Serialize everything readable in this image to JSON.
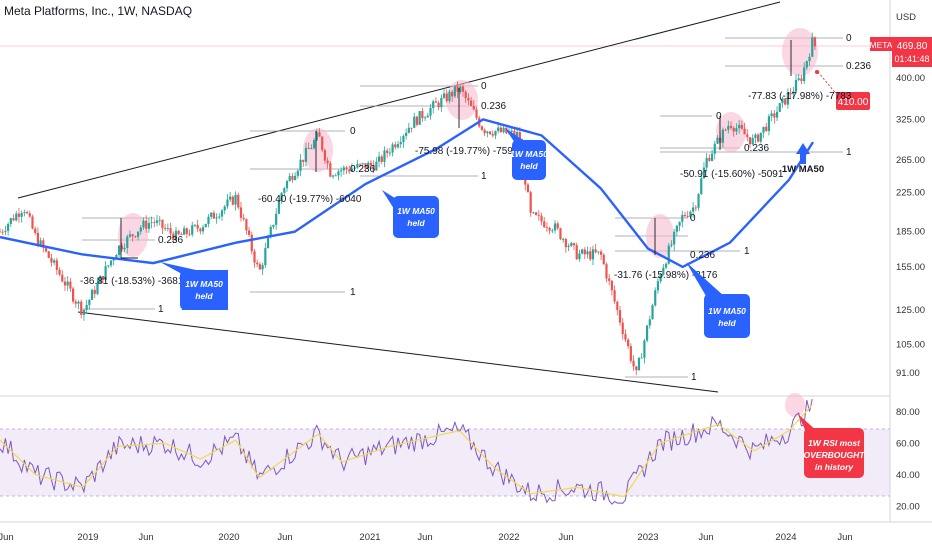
{
  "header": {
    "title": "Meta Platforms, Inc., 1W, NASDAQ"
  },
  "currency_label": "USD",
  "price_tag": {
    "symbol": "META",
    "price": "469.80",
    "countdown": "01:41:48",
    "color": "#f23645"
  },
  "target_tag": {
    "label": "410.00",
    "color": "#f23645"
  },
  "fib_labels": {
    "zero": "0",
    "mid": "0.236",
    "one": "1"
  },
  "pullbacks": {
    "p2019": "-36.81 (-18.53%) -3681",
    "p2020": "-60.40 (-19.77%) -6040",
    "p2021": "-75.98 (-19.77%) -7598",
    "p2023a": "-31.76 (-15.98%) -3176",
    "p2023b": "-50.91 (-15.60%) -5091",
    "p2024": "-77.83 (-17.98%) -7783"
  },
  "callouts": {
    "ma_held": [
      "1W MA50",
      "held"
    ],
    "ma_label": "1W MA50",
    "rsi": [
      "1W RSI most",
      "OVERBOUGHT",
      "in history"
    ]
  },
  "colors": {
    "up": "#26a69a",
    "down": "#ef5350",
    "ma50": "#2962ff",
    "rsi": "#7e57c2",
    "rsi_ma": "#f2d94e",
    "rsi_band": "#ede7f6",
    "callout": "#2962ff",
    "callout_red": "#f23645"
  },
  "chart_data": {
    "type": "candlestick",
    "title": "Meta Platforms, Inc., 1W, NASDAQ",
    "y_scale": "log",
    "y_ticks": [
      91,
      105,
      125,
      155,
      185,
      225,
      265,
      325,
      400
    ],
    "x_ticks": [
      "Jun",
      "2019",
      "Jun",
      "2020",
      "Jun",
      "2021",
      "Jun",
      "2022",
      "Jun",
      "2023",
      "Jun",
      "2024",
      "Jun"
    ],
    "price_path": [
      [
        "2018-05",
        185
      ],
      [
        "2018-07",
        210
      ],
      [
        "2018-08",
        180
      ],
      [
        "2018-10",
        150
      ],
      [
        "2018-12",
        124
      ],
      [
        "2019-03",
        170
      ],
      [
        "2019-05",
        190
      ],
      [
        "2019-06",
        195
      ],
      [
        "2019-08",
        180
      ],
      [
        "2019-10",
        190
      ],
      [
        "2020-01",
        220
      ],
      [
        "2020-03",
        150
      ],
      [
        "2020-05",
        230
      ],
      [
        "2020-08",
        300
      ],
      [
        "2020-09",
        250
      ],
      [
        "2021-01",
        260
      ],
      [
        "2021-02",
        280
      ],
      [
        "2021-04",
        320
      ],
      [
        "2021-06",
        350
      ],
      [
        "2021-08",
        380
      ],
      [
        "2021-10",
        310
      ],
      [
        "2022-01",
        300
      ],
      [
        "2022-02",
        200
      ],
      [
        "2022-04",
        190
      ],
      [
        "2022-06",
        165
      ],
      [
        "2022-08",
        165
      ],
      [
        "2022-11",
        90
      ],
      [
        "2023-01",
        150
      ],
      [
        "2023-03",
        200
      ],
      [
        "2023-04",
        210
      ],
      [
        "2023-05",
        265
      ],
      [
        "2023-07",
        320
      ],
      [
        "2023-09",
        290
      ],
      [
        "2023-11",
        340
      ],
      [
        "2024-01",
        400
      ],
      [
        "2024-02",
        485
      ],
      [
        "2024-02-20",
        470
      ]
    ],
    "ma50": [
      [
        "2018-05",
        180
      ],
      [
        "2018-12",
        165
      ],
      [
        "2019-06",
        158
      ],
      [
        "2020-01",
        175
      ],
      [
        "2020-06",
        185
      ],
      [
        "2020-12",
        235
      ],
      [
        "2021-06",
        280
      ],
      [
        "2021-10",
        325
      ],
      [
        "2022-03",
        300
      ],
      [
        "2022-08",
        230
      ],
      [
        "2022-12",
        170
      ],
      [
        "2023-03",
        155
      ],
      [
        "2023-07",
        175
      ],
      [
        "2023-12",
        240
      ],
      [
        "2024-02",
        290
      ]
    ],
    "rsi": {
      "range": [
        20,
        90
      ],
      "ticks": [
        20,
        40,
        60,
        80
      ],
      "band": [
        30,
        70
      ],
      "values": [
        [
          "2018-05",
          62
        ],
        [
          "2018-08",
          40
        ],
        [
          "2018-12",
          32
        ],
        [
          "2019-03",
          58
        ],
        [
          "2019-07",
          60
        ],
        [
          "2019-10",
          50
        ],
        [
          "2020-01",
          62
        ],
        [
          "2020-03",
          38
        ],
        [
          "2020-08",
          66
        ],
        [
          "2020-10",
          48
        ],
        [
          "2021-02",
          58
        ],
        [
          "2021-08",
          68
        ],
        [
          "2021-11",
          44
        ],
        [
          "2022-02",
          28
        ],
        [
          "2022-06",
          32
        ],
        [
          "2022-10",
          26
        ],
        [
          "2023-01",
          60
        ],
        [
          "2023-06",
          72
        ],
        [
          "2023-09",
          55
        ],
        [
          "2023-12",
          68
        ],
        [
          "2024-02",
          85
        ]
      ]
    },
    "price": 469.8,
    "target": 410.0
  }
}
